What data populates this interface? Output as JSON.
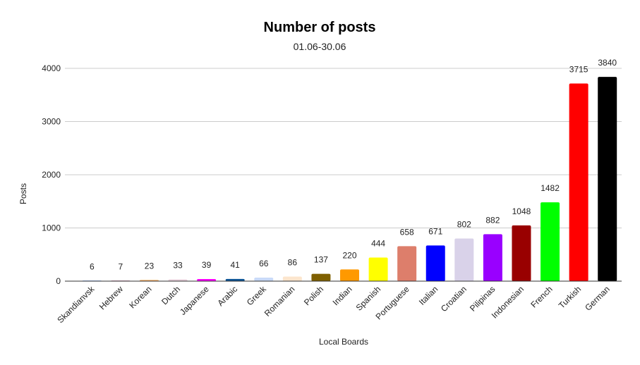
{
  "chart_data": {
    "type": "bar",
    "title": "Number of posts",
    "subtitle": "01.06-30.06",
    "xlabel": "Local Boards",
    "ylabel": "Posts",
    "ylim": [
      0,
      4000
    ],
    "yticks": [
      0,
      1000,
      2000,
      3000,
      4000
    ],
    "grid": true,
    "categories": [
      "Skandianvsk",
      "Hebrew",
      "Korean",
      "Dutch",
      "Japanese",
      "Arabic",
      "Greek",
      "Romanian",
      "Polish",
      "Indian",
      "Spanish",
      "Portuguese",
      "Italian",
      "Croatian",
      "Pilipinas",
      "Indonesian",
      "French",
      "Turkish",
      "German"
    ],
    "values": [
      6,
      7,
      23,
      33,
      39,
      41,
      66,
      86,
      137,
      220,
      444,
      658,
      671,
      802,
      882,
      1048,
      1482,
      3715,
      3840
    ],
    "colors": [
      "#a4c2f4",
      "#d5a6bd",
      "#f6b26b",
      "#ead1dc",
      "#ff00ff",
      "#0b5394",
      "#c9daf8",
      "#fce5cd",
      "#7f6000",
      "#ff9900",
      "#ffff00",
      "#dd7e6b",
      "#0000ff",
      "#d9d2e9",
      "#9900ff",
      "#990000",
      "#00ff00",
      "#ff0000",
      "#000000"
    ]
  }
}
